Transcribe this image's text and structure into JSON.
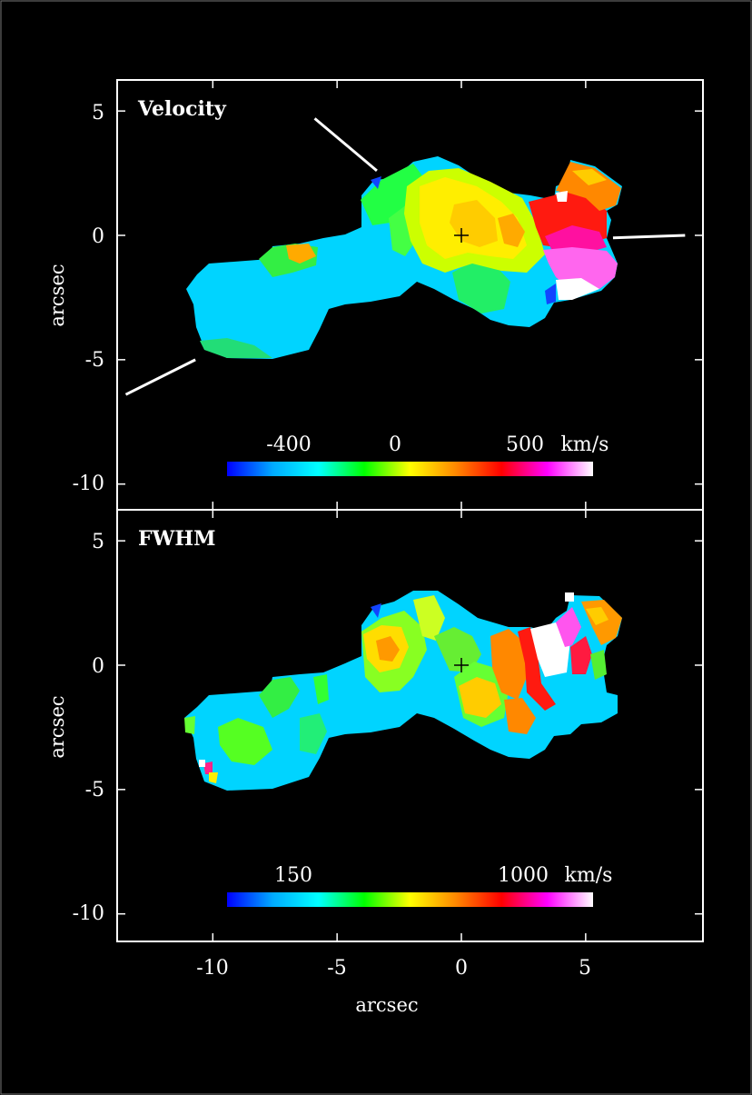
{
  "chart_data": [
    {
      "type": "heatmap",
      "title": "Velocity",
      "ylabel": "arcsec",
      "xlabel": "",
      "xlim": [
        -13.8,
        9.6
      ],
      "ylim": [
        -11.1,
        6.1
      ],
      "xticks": [
        -10,
        -5,
        0,
        5
      ],
      "yticks": [
        {
          "value": 5,
          "label": "5"
        },
        {
          "value": 0,
          "label": "0"
        },
        {
          "value": -5,
          "label": "-5"
        },
        {
          "value": -10,
          "label": "-10"
        }
      ],
      "center_marker": [
        0,
        0
      ],
      "colorbar": {
        "unit": "km/s",
        "range": [
          -625,
          800
        ],
        "ticks": [
          {
            "value": -400,
            "label": "-400"
          },
          {
            "value": 0,
            "label": "0"
          },
          {
            "value": 500,
            "label": "500"
          }
        ],
        "colors": [
          "#0000ff",
          "#00aaff",
          "#00ffff",
          "#00ff00",
          "#ffff00",
          "#ff8800",
          "#ff0000",
          "#ff00ff",
          "#ffffff"
        ]
      },
      "annotation_lines": [
        {
          "x": [
            -5.9,
            -3.4
          ],
          "y": [
            4.7,
            2.6
          ]
        },
        {
          "x": [
            -13.5,
            -10.7
          ],
          "y": [
            -6.4,
            -5.0
          ]
        },
        {
          "x": [
            6.1,
            9.0
          ],
          "y": [
            -0.1,
            0.0
          ]
        }
      ]
    },
    {
      "type": "heatmap",
      "title": "FWHM",
      "ylabel": "arcsec",
      "xlabel": "arcsec",
      "xlim": [
        -13.8,
        9.6
      ],
      "ylim": [
        -11.1,
        6.1
      ],
      "xticks": [
        {
          "value": -10,
          "label": "-10"
        },
        {
          "value": -5,
          "label": "-5"
        },
        {
          "value": 0,
          "label": "0"
        },
        {
          "value": 5,
          "label": "5"
        }
      ],
      "yticks": [
        {
          "value": 5,
          "label": "5"
        },
        {
          "value": 0,
          "label": "0"
        },
        {
          "value": -5,
          "label": "-5"
        },
        {
          "value": -10,
          "label": "-10"
        }
      ],
      "center_marker": [
        0,
        0
      ],
      "colorbar": {
        "unit": "km/s",
        "range": [
          0,
          1200
        ],
        "ticks": [
          {
            "value": 150,
            "label": "150"
          },
          {
            "value": 1000,
            "label": "1000"
          }
        ],
        "colors": [
          "#0000ff",
          "#00aaff",
          "#00ffff",
          "#00ff00",
          "#ffff00",
          "#ff8800",
          "#ff0000",
          "#ff00ff",
          "#ffffff"
        ]
      }
    }
  ]
}
